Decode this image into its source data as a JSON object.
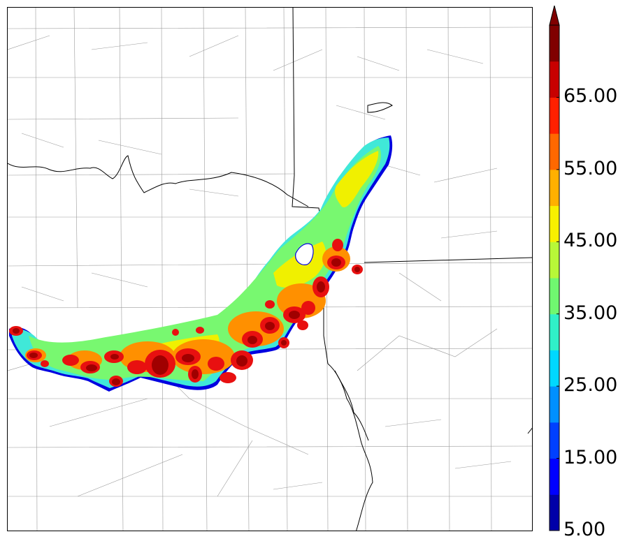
{
  "colorbar": {
    "tick_labels": [
      "5.00",
      "15.00",
      "25.00",
      "35.00",
      "45.00",
      "55.00",
      "65.00"
    ],
    "levels": [
      5,
      10,
      15,
      20,
      25,
      30,
      35,
      40,
      45,
      50,
      55,
      60,
      65,
      70
    ],
    "colors": [
      "#0000a8",
      "#0000ff",
      "#0040ff",
      "#0090ff",
      "#00d8ff",
      "#30f0c8",
      "#70f870",
      "#b8f838",
      "#f8f000",
      "#ffb000",
      "#ff6800",
      "#ff2000",
      "#c80000",
      "#800000"
    ],
    "extend": "max"
  },
  "map": {
    "feature": "reflectivity swath",
    "colors": {
      "outline": "#0000e0",
      "light": "#30e8e0",
      "mid": "#70f870",
      "yellow": "#f0f000",
      "orange": "#ff9000",
      "red": "#e81010",
      "dark": "#a00000"
    }
  }
}
